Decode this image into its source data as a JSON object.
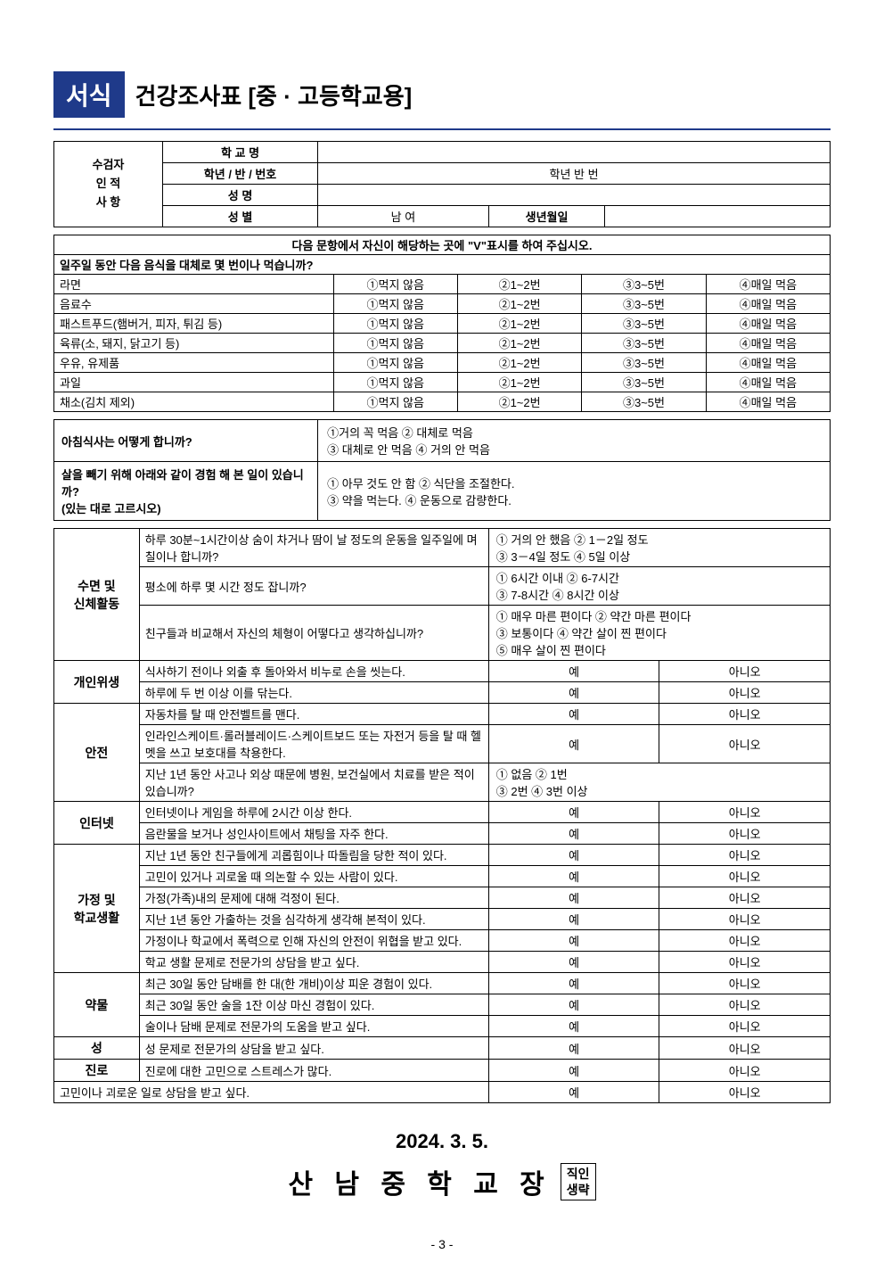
{
  "header": {
    "badge": "서식",
    "title": "건강조사표  [중 · 고등학교용]"
  },
  "info": {
    "section_label": "수검자\n인 적\n사 항",
    "rows": [
      {
        "label": "학 교 명",
        "value": ""
      },
      {
        "label": "학년 / 반 / 번호",
        "value": "학년       반       번"
      },
      {
        "label": "성  명",
        "value": ""
      },
      {
        "label": "성  별",
        "value_left": "남      여",
        "value_right_label": "생년월일",
        "value_right": ""
      }
    ]
  },
  "instruction": "다음 문항에서 자신이 해당하는 곳에 \"V\"표시를 하여 주십시오.",
  "food": {
    "header": "일주일 동안 다음 음식을 대체로 몇 번이나 먹습니까?",
    "options": [
      "①먹지 않음",
      "②1~2번",
      "③3~5번",
      "④매일 먹음"
    ],
    "items": [
      "라면",
      "음료수",
      "패스트푸드(햄버거, 피자, 튀김 등)",
      "육류(소, 돼지, 닭고기 등)",
      "우유, 유제품",
      "과일",
      "채소(김치 제외)"
    ]
  },
  "q_breakfast": {
    "question": "아침식사는 어떻게 합니까?",
    "options": "①거의 꼭 먹음  ② 대체로 먹음\n③ 대체로 안 먹음   ④ 거의 안 먹음"
  },
  "q_weight": {
    "question": "살을 빼기 위해 아래와 같이 경험 해 본 일이 있습니까?\n(있는 대로 고르시오)",
    "options": "① 아무 것도 안 함      ② 식단을 조절한다.\n③ 약을 먹는다.         ④ 운동으로 감량한다."
  },
  "sections": [
    {
      "category": "수면 및\n신체활동",
      "rows": [
        {
          "q": "하루 30분~1시간이상 숨이 차거나 땀이 날 정도의 운동을 일주일에 며칠이나 합니까?",
          "opts": "① 거의 안 했음        ② 1－2일 정도\n③ 3－4일 정도          ④ 5일 이상"
        },
        {
          "q": "평소에 하루 몇 시간 정도 잡니까?",
          "opts": "① 6시간 이내  ② 6-7시간\n③ 7-8시간   ④ 8시간 이상"
        },
        {
          "q": "친구들과 비교해서 자신의 체형이 어떻다고 생각하십니까?",
          "opts": "① 매우 마른 편이다  ② 약간 마른 편이다\n③ 보통이다  ④ 약간 살이 찐 편이다\n⑤ 매우 살이 찐 편이다"
        }
      ]
    },
    {
      "category": "개인위생",
      "rows": [
        {
          "q": "식사하기 전이나 외출 후 돌아와서 비누로 손을 씻는다.",
          "yes": "예",
          "no": "아니오"
        },
        {
          "q": "하루에 두 번 이상 이를 닦는다.",
          "yes": "예",
          "no": "아니오"
        }
      ]
    },
    {
      "category": "안전",
      "rows": [
        {
          "q": "자동차를 탈 때 안전벨트를 맨다.",
          "yes": "예",
          "no": "아니오"
        },
        {
          "q": "인라인스케이트·롤러블레이드·스케이트보드 또는 자전거 등을 탈 때 헬멧을 쓰고 보호대를 착용한다.",
          "yes": "예",
          "no": "아니오"
        },
        {
          "q": "지난 1년 동안 사고나 외상 때문에 병원, 보건실에서 치료를 받은 적이 있습니까?",
          "opts": "① 없음        ② 1번\n③ 2번         ④ 3번 이상"
        }
      ]
    },
    {
      "category": "인터넷",
      "rows": [
        {
          "q": "인터넷이나 게임을 하루에 2시간 이상 한다.",
          "yes": "예",
          "no": "아니오"
        },
        {
          "q": "음란물을 보거나 성인사이트에서 채팅을 자주 한다.",
          "yes": "예",
          "no": "아니오"
        }
      ]
    },
    {
      "category": "가정 및\n학교생활",
      "rows": [
        {
          "q": "지난 1년 동안 친구들에게 괴롭힘이나 따돌림을 당한 적이 있다.",
          "yes": "예",
          "no": "아니오"
        },
        {
          "q": "고민이 있거나 괴로울 때 의논할 수 있는 사람이 있다.",
          "yes": "예",
          "no": "아니오"
        },
        {
          "q": "가정(가족)내의 문제에 대해 걱정이 된다.",
          "yes": "예",
          "no": "아니오"
        },
        {
          "q": "지난 1년 동안 가출하는 것을 심각하게 생각해 본적이 있다.",
          "yes": "예",
          "no": "아니오"
        },
        {
          "q": "가정이나 학교에서 폭력으로 인해 자신의 안전이 위협을 받고 있다.",
          "yes": "예",
          "no": "아니오"
        },
        {
          "q": "학교 생활 문제로 전문가의 상담을 받고 싶다.",
          "yes": "예",
          "no": "아니오"
        }
      ]
    },
    {
      "category": "약물",
      "rows": [
        {
          "q": "최근 30일 동안 담배를 한 대(한 개비)이상 피운 경험이 있다.",
          "yes": "예",
          "no": "아니오"
        },
        {
          "q": "최근 30일 동안 술을 1잔 이상 마신 경험이 있다.",
          "yes": "예",
          "no": "아니오"
        },
        {
          "q": "술이나 담배 문제로 전문가의 도움을 받고 싶다.",
          "yes": "예",
          "no": "아니오"
        }
      ]
    },
    {
      "category": "성",
      "rows": [
        {
          "q": "성 문제로 전문가의 상담을 받고 싶다.",
          "yes": "예",
          "no": "아니오"
        }
      ]
    },
    {
      "category": "진로",
      "rows": [
        {
          "q": "진로에 대한 고민으로 스트레스가 많다.",
          "yes": "예",
          "no": "아니오"
        }
      ]
    }
  ],
  "last_row": {
    "q": "고민이나 괴로운 일로 상담을 받고 싶다.",
    "yes": "예",
    "no": "아니오"
  },
  "footer": {
    "date": "2024.  3.  5.",
    "signature": "산 남 중 학 교 장",
    "seal": "직인\n생략",
    "page": "- 3 -"
  },
  "layout": {
    "col_widths": {
      "cat": "11%",
      "q": "45%",
      "opt": "44%"
    }
  }
}
